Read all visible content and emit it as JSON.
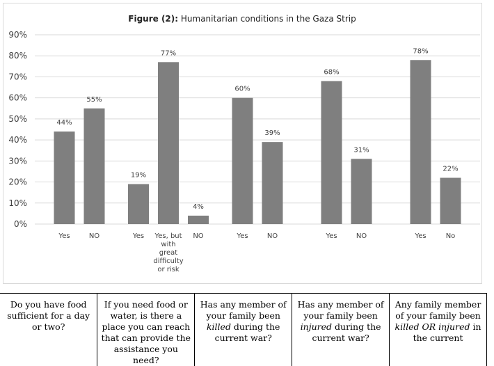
{
  "chart_data": {
    "type": "bar",
    "title_bold": "Figure (2):",
    "title_rest": " Humanitarian conditions in the Gaza Strip",
    "ylim": [
      0,
      90
    ],
    "yticks": [
      "90%",
      "80%",
      "70%",
      "60%",
      "50%",
      "40%",
      "30%",
      "20%",
      "10%",
      "0%"
    ],
    "grid": true,
    "bar_color": "#7f7f7f",
    "groups": [
      {
        "bars": [
          {
            "label": [
              "Yes"
            ],
            "value": 44,
            "text": "44%"
          },
          {
            "label": [
              "NO"
            ],
            "value": 55,
            "text": "55%"
          }
        ]
      },
      {
        "bars": [
          {
            "label": [
              "Yes"
            ],
            "value": 19,
            "text": "19%"
          },
          {
            "label": [
              "Yes, but",
              "with",
              "great",
              "difficulty",
              "or risk"
            ],
            "value": 77,
            "text": "77%"
          },
          {
            "label": [
              "NO"
            ],
            "value": 4,
            "text": "4%"
          }
        ]
      },
      {
        "bars": [
          {
            "label": [
              "Yes"
            ],
            "value": 60,
            "text": "60%"
          },
          {
            "label": [
              "NO"
            ],
            "value": 39,
            "text": "39%"
          }
        ]
      },
      {
        "bars": [
          {
            "label": [
              "Yes"
            ],
            "value": 68,
            "text": "68%"
          },
          {
            "label": [
              "NO"
            ],
            "value": 31,
            "text": "31%"
          }
        ]
      },
      {
        "bars": [
          {
            "label": [
              "Yes"
            ],
            "value": 78,
            "text": "78%"
          },
          {
            "label": [
              "No"
            ],
            "value": 22,
            "text": "22%"
          }
        ]
      }
    ]
  },
  "questions": {
    "q1": {
      "text": "Do you have food sufficient for a day or two?"
    },
    "q2": {
      "text": "If you need food or water, is there a place you can reach that can provide the assistance you need?"
    },
    "q3": {
      "before": "Has any member of your family been ",
      "em": "killed",
      "after": " during the current war?"
    },
    "q4": {
      "before": "Has any member of your family been ",
      "em": "injured",
      "after": " during the current war?"
    },
    "q5": {
      "before": "Any family member of your family been ",
      "em": "killed OR injured",
      "after": " in the current"
    }
  }
}
